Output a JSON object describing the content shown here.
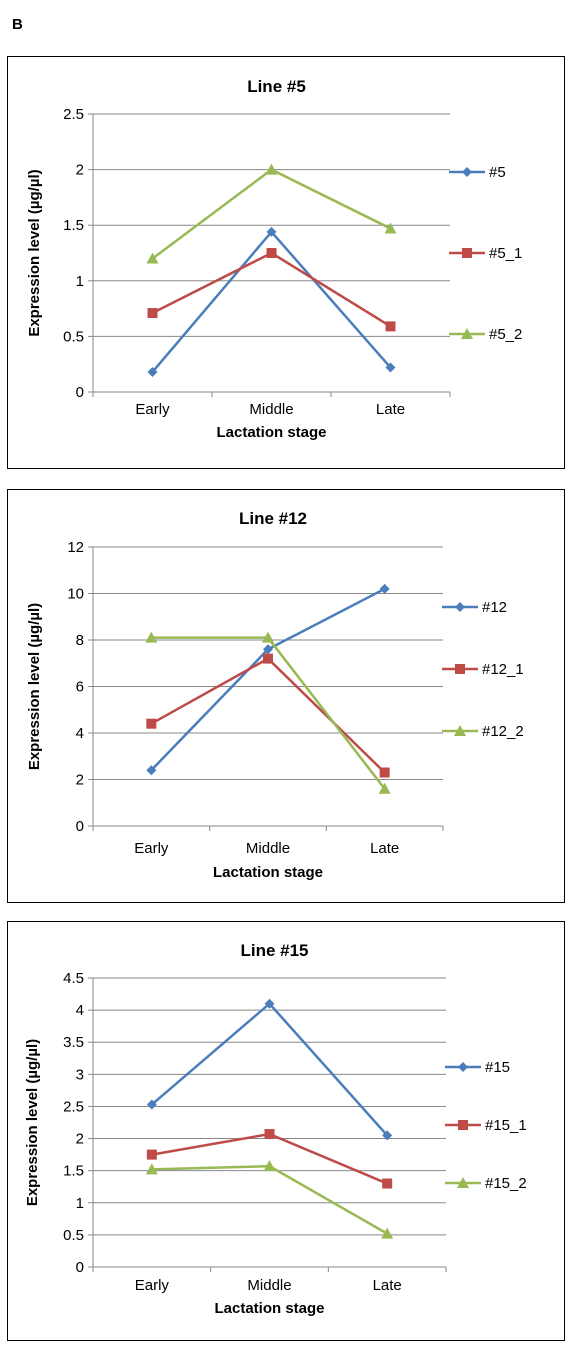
{
  "figure_label": "B",
  "colors": {
    "blue": "#4a7ebb",
    "red": "#be4b48",
    "green": "#98b954",
    "grid": "#888888"
  },
  "chart_data": [
    {
      "type": "line",
      "title": "Line #5",
      "xlabel": "Lactation stage",
      "ylabel": "Expression level (µg/µl)",
      "categories": [
        "Early",
        "Middle",
        "Late"
      ],
      "ylim": [
        0,
        2.5
      ],
      "yticks": [
        "0",
        "0.5",
        "1",
        "1.5",
        "2",
        "2.5"
      ],
      "grid": true,
      "legend_position": "right",
      "series": [
        {
          "name": "#5",
          "marker": "diamond",
          "color": "#4a7ebb",
          "values": [
            0.18,
            1.44,
            0.22
          ]
        },
        {
          "name": "#5_1",
          "marker": "square",
          "color": "#be4b48",
          "values": [
            0.71,
            1.25,
            0.59
          ]
        },
        {
          "name": "#5_2",
          "marker": "triangle",
          "color": "#98b954",
          "values": [
            1.2,
            2.0,
            1.47
          ]
        }
      ]
    },
    {
      "type": "line",
      "title": "Line #12",
      "xlabel": "Lactation stage",
      "ylabel": "Expression level (µg/µl)",
      "categories": [
        "Early",
        "Middle",
        "Late"
      ],
      "ylim": [
        0,
        12
      ],
      "yticks": [
        "0",
        "2",
        "4",
        "6",
        "8",
        "10",
        "12"
      ],
      "grid": true,
      "legend_position": "right",
      "series": [
        {
          "name": "#12",
          "marker": "diamond",
          "color": "#4a7ebb",
          "values": [
            2.4,
            7.6,
            10.2
          ]
        },
        {
          "name": "#12_1",
          "marker": "square",
          "color": "#be4b48",
          "values": [
            4.4,
            7.2,
            2.3
          ]
        },
        {
          "name": "#12_2",
          "marker": "triangle",
          "color": "#98b954",
          "values": [
            8.1,
            8.1,
            1.6
          ]
        }
      ]
    },
    {
      "type": "line",
      "title": "Line #15",
      "xlabel": "Lactation stage",
      "ylabel": "Expression level (µg/µl)",
      "categories": [
        "Early",
        "Middle",
        "Late"
      ],
      "ylim": [
        0,
        4.5
      ],
      "yticks": [
        "0",
        "0.5",
        "1",
        "1.5",
        "2",
        "2.5",
        "3",
        "3.5",
        "4",
        "4.5"
      ],
      "grid": true,
      "legend_position": "right",
      "series": [
        {
          "name": "#15",
          "marker": "diamond",
          "color": "#4a7ebb",
          "values": [
            2.53,
            4.1,
            2.05
          ]
        },
        {
          "name": "#15_1",
          "marker": "square",
          "color": "#be4b48",
          "values": [
            1.75,
            2.07,
            1.3
          ]
        },
        {
          "name": "#15_2",
          "marker": "triangle",
          "color": "#98b954",
          "values": [
            1.52,
            1.57,
            0.52
          ]
        }
      ]
    }
  ]
}
